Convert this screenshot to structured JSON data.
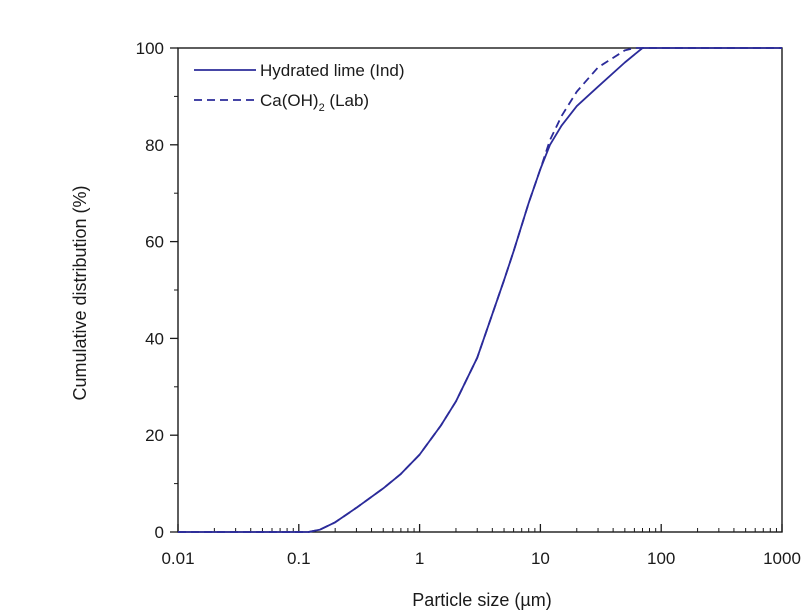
{
  "chart_data": {
    "type": "line",
    "xlabel": "Particle size (µm)",
    "ylabel": "Cumulative distribution (%)",
    "x_scale": "log",
    "xlim": [
      0.01,
      1000
    ],
    "ylim": [
      0,
      100
    ],
    "x_ticks": [
      0.01,
      0.1,
      1,
      10,
      100,
      1000
    ],
    "x_tick_labels": [
      "0.01",
      "0.1",
      "1",
      "10",
      "100",
      "1000"
    ],
    "y_ticks": [
      0,
      20,
      40,
      60,
      80,
      100
    ],
    "y_tick_labels": [
      "0",
      "20",
      "40",
      "60",
      "80",
      "100"
    ],
    "grid": false,
    "legend_position": "top-left",
    "series": [
      {
        "name": "Hydrated lime (Ind)",
        "style": "solid",
        "color": "#2b2b9a",
        "points": [
          [
            0.01,
            0
          ],
          [
            0.12,
            0
          ],
          [
            0.15,
            0.5
          ],
          [
            0.2,
            2
          ],
          [
            0.3,
            5
          ],
          [
            0.5,
            9
          ],
          [
            0.7,
            12
          ],
          [
            1,
            16
          ],
          [
            1.5,
            22
          ],
          [
            2,
            27
          ],
          [
            3,
            36
          ],
          [
            4,
            45
          ],
          [
            5,
            52
          ],
          [
            6,
            58
          ],
          [
            8,
            68
          ],
          [
            10,
            75
          ],
          [
            12,
            80
          ],
          [
            15,
            84
          ],
          [
            20,
            88
          ],
          [
            30,
            92
          ],
          [
            50,
            97
          ],
          [
            70,
            100
          ],
          [
            1000,
            100
          ]
        ]
      },
      {
        "name": "Ca(OH)₂ (Lab)",
        "name_parts": [
          "Ca(OH)",
          "2",
          " (Lab)"
        ],
        "style": "dashed",
        "color": "#2b2b9a",
        "points": [
          [
            0.01,
            0
          ],
          [
            0.12,
            0
          ],
          [
            0.15,
            0.5
          ],
          [
            0.2,
            2
          ],
          [
            0.3,
            5
          ],
          [
            0.5,
            9
          ],
          [
            0.7,
            12
          ],
          [
            1,
            16
          ],
          [
            1.5,
            22
          ],
          [
            2,
            27
          ],
          [
            3,
            36
          ],
          [
            4,
            45
          ],
          [
            5,
            52
          ],
          [
            6,
            58
          ],
          [
            8,
            68
          ],
          [
            10,
            75
          ],
          [
            12,
            81
          ],
          [
            15,
            86
          ],
          [
            20,
            91
          ],
          [
            30,
            96
          ],
          [
            50,
            99.5
          ],
          [
            60,
            100
          ],
          [
            1000,
            100
          ]
        ]
      }
    ]
  }
}
